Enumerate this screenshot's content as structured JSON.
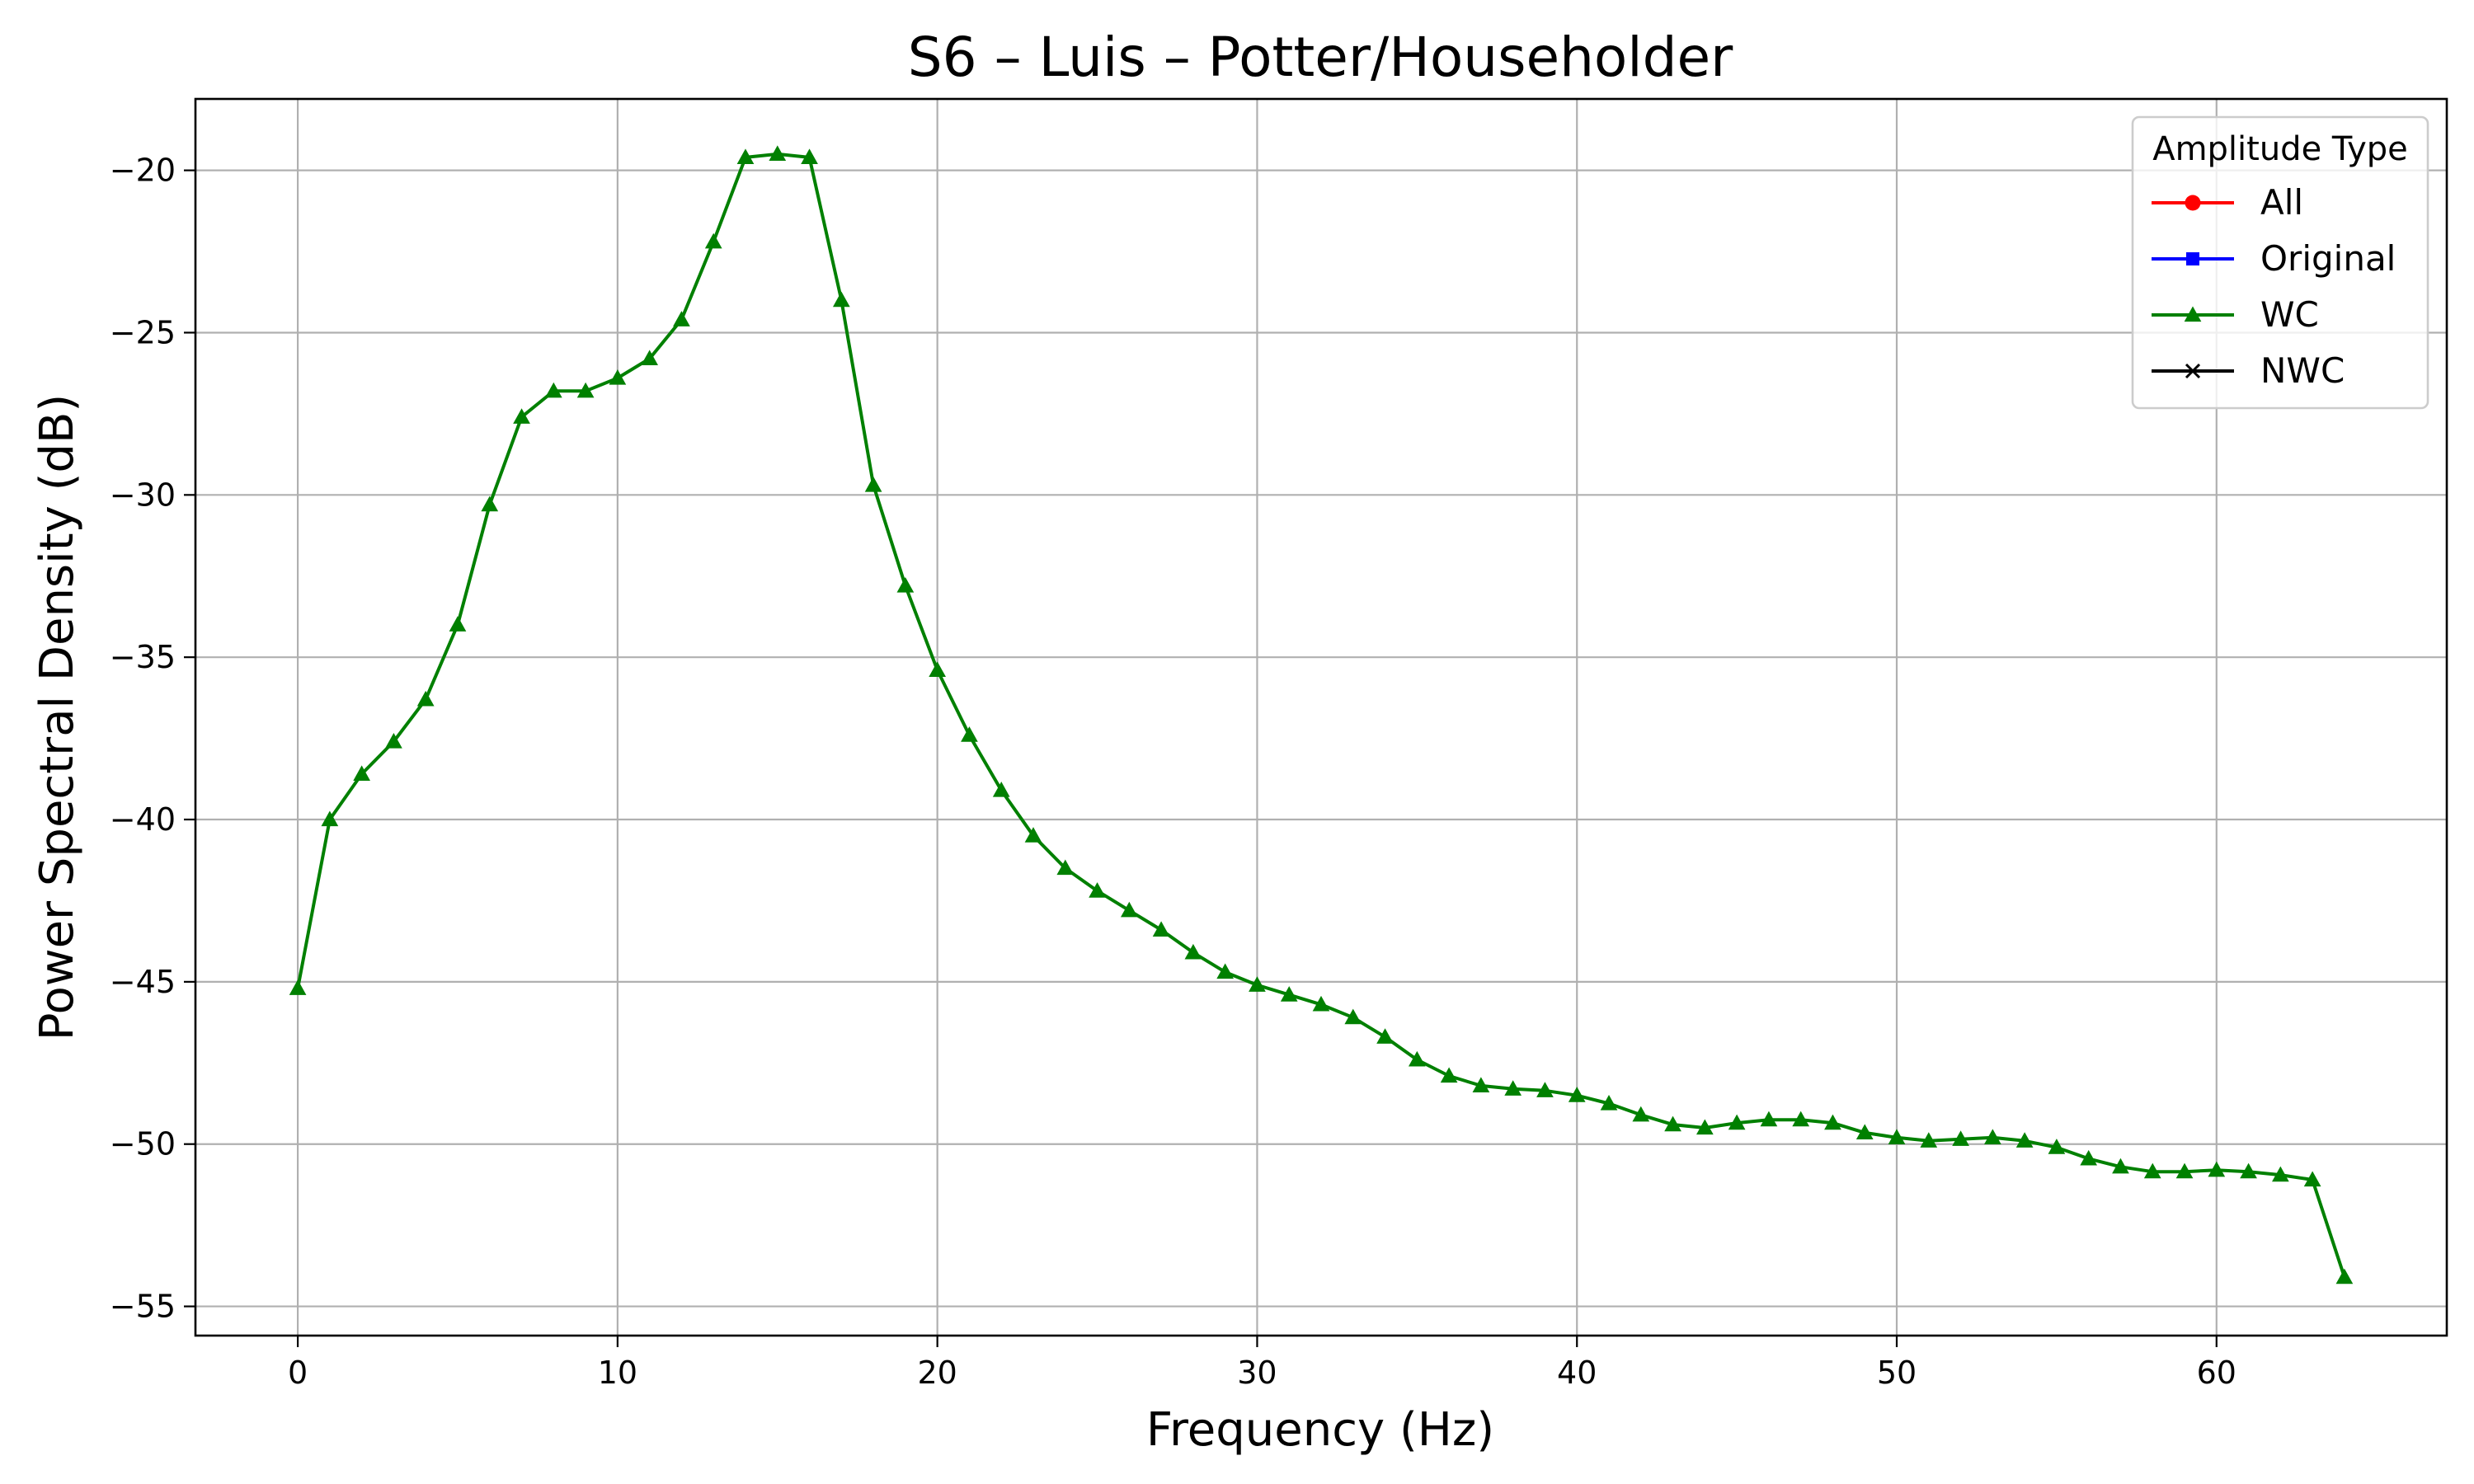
{
  "chart_data": {
    "type": "line",
    "title": "S6 – Luis – Potter/Householder",
    "xlabel": "Frequency (Hz)",
    "ylabel": "Power Spectral Density (dB)",
    "xlim": [
      -3.2,
      67.2
    ],
    "ylim": [
      -55.9,
      -17.8
    ],
    "xticks": [
      0,
      10,
      20,
      30,
      40,
      50,
      60
    ],
    "yticks": [
      -20,
      -25,
      -30,
      -35,
      -40,
      -45,
      -50,
      -55
    ],
    "xtick_labels": [
      "0",
      "10",
      "20",
      "30",
      "40",
      "50",
      "60"
    ],
    "ytick_labels": [
      "−20",
      "−25",
      "−30",
      "−35",
      "−40",
      "−45",
      "−50",
      "−55"
    ],
    "grid": true,
    "legend": {
      "title": "Amplitude Type",
      "placement": "top-right",
      "entries": [
        {
          "label": "All",
          "color": "#ff0000",
          "marker": "circle"
        },
        {
          "label": "Original",
          "color": "#0000ff",
          "marker": "square"
        },
        {
          "label": "WC",
          "color": "#008000",
          "marker": "triangle"
        },
        {
          "label": "NWC",
          "color": "#000000",
          "marker": "x"
        }
      ]
    },
    "series": [
      {
        "name": "WC",
        "color": "#008000",
        "marker": "triangle",
        "x": [
          0,
          1,
          2,
          3,
          4,
          5,
          6,
          7,
          8,
          9,
          10,
          11,
          12,
          13,
          14,
          15,
          16,
          17,
          18,
          19,
          20,
          21,
          22,
          23,
          24,
          25,
          26,
          27,
          28,
          29,
          30,
          31,
          32,
          33,
          34,
          35,
          36,
          37,
          38,
          39,
          40,
          41,
          42,
          43,
          44,
          45,
          46,
          47,
          48,
          49,
          50,
          51,
          52,
          53,
          54,
          55,
          56,
          57,
          58,
          59,
          60,
          61,
          62,
          63,
          64
        ],
        "y": [
          -45.2,
          -40.0,
          -38.6,
          -37.6,
          -36.3,
          -34.0,
          -30.3,
          -27.6,
          -26.8,
          -26.8,
          -26.4,
          -25.8,
          -24.6,
          -22.2,
          -19.6,
          -19.5,
          -19.6,
          -24.0,
          -29.7,
          -32.8,
          -35.4,
          -37.4,
          -39.1,
          -40.5,
          -41.5,
          -42.2,
          -42.8,
          -43.4,
          -44.1,
          -44.7,
          -45.1,
          -45.4,
          -45.7,
          -46.1,
          -46.7,
          -47.4,
          -47.9,
          -48.2,
          -48.3,
          -48.35,
          -48.5,
          -48.75,
          -49.1,
          -49.4,
          -49.5,
          -49.35,
          -49.25,
          -49.25,
          -49.35,
          -49.65,
          -49.8,
          -49.9,
          -49.85,
          -49.8,
          -49.9,
          -50.1,
          -50.45,
          -50.7,
          -50.85,
          -50.85,
          -50.8,
          -50.85,
          -50.95,
          -51.1,
          -54.1
        ]
      }
    ]
  }
}
